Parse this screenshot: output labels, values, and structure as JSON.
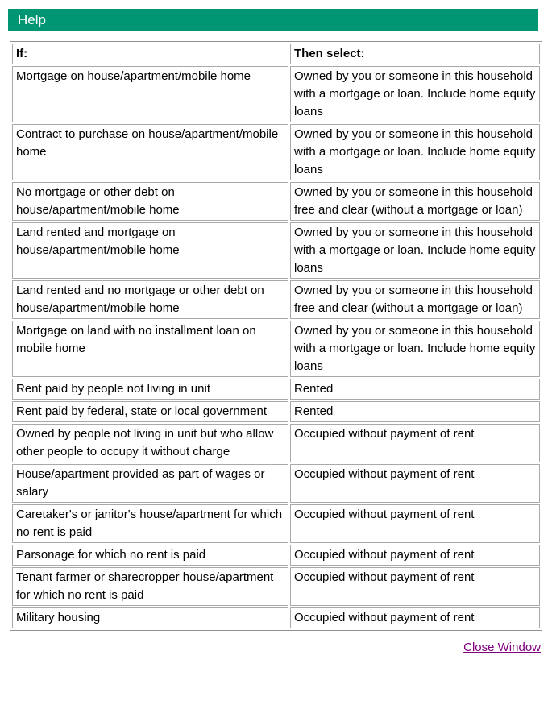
{
  "header": {
    "title": "Help",
    "bar_color": "#009673",
    "title_color": "#ffffff"
  },
  "table": {
    "columns": [
      {
        "label": "If:"
      },
      {
        "label": "Then select:"
      }
    ],
    "rows": [
      [
        "Mortgage on house/apartment/mobile home",
        "Owned by you or someone in this household with a mortgage or loan. Include home equity loans"
      ],
      [
        "Contract to purchase on house/apartment/mobile home",
        "Owned by you or someone in this household with a mortgage or loan. Include home equity loans"
      ],
      [
        "No mortgage or other debt on house/apartment/mobile home",
        "Owned by you or someone in this household free and clear (without a mortgage or loan)"
      ],
      [
        "Land rented and mortgage on house/apartment/mobile home",
        "Owned by you or someone in this household with a mortgage or loan. Include home equity loans"
      ],
      [
        "Land rented and no mortgage or other debt on house/apartment/mobile home",
        "Owned by you or someone in this household free and clear (without a mortgage or loan)"
      ],
      [
        "Mortgage on land with no installment loan on mobile home",
        "Owned by you or someone in this household with a mortgage or loan. Include home equity loans"
      ],
      [
        "Rent paid by people not living in unit",
        "Rented"
      ],
      [
        "Rent paid by federal, state or local government",
        "Rented"
      ],
      [
        "Owned by people not living in unit but who allow other people to occupy it without charge",
        "Occupied without payment of rent"
      ],
      [
        "House/apartment provided as part of wages or salary",
        "Occupied without payment of rent"
      ],
      [
        "Caretaker's or janitor's house/apartment for which no rent is paid",
        "Occupied without payment of rent"
      ],
      [
        "Parsonage for which no rent is paid",
        "Occupied without payment of rent"
      ],
      [
        "Tenant farmer or sharecropper house/apartment for which no rent is paid",
        "Occupied without payment of rent"
      ],
      [
        "Military housing",
        "Occupied without payment of rent"
      ]
    ]
  },
  "footer": {
    "close_link_label": "Close Window",
    "link_color": "#800080"
  }
}
